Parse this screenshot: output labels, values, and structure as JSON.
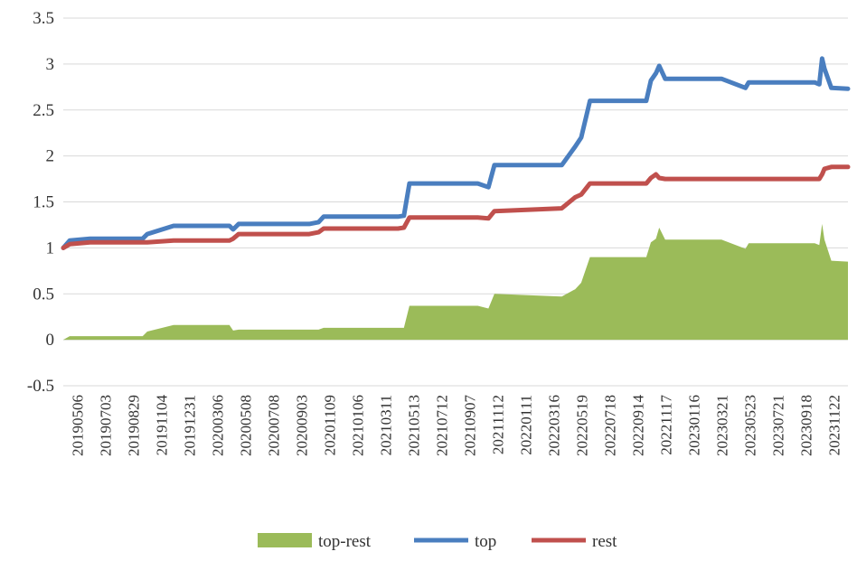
{
  "chart_data": {
    "type": "line",
    "title": "",
    "xlabel": "",
    "ylabel": "",
    "ylim": [
      -0.5,
      3.5
    ],
    "yticks": [
      "3.5",
      "3",
      "2.5",
      "2",
      "1.5",
      "1",
      "0.5",
      "0",
      "-0.5"
    ],
    "grid": "horizontal",
    "legend_position": "bottom",
    "x_tick_labels": [
      "20190506",
      "20190703",
      "20190829",
      "20191104",
      "20191231",
      "20200306",
      "20200508",
      "20200708",
      "20200903",
      "20201109",
      "20210106",
      "20210311",
      "20210513",
      "20210712",
      "20210907",
      "20211112",
      "20220111",
      "20220316",
      "20220519",
      "20220718",
      "20220914",
      "20221117",
      "20230116",
      "20230321",
      "20230523",
      "20230721",
      "20230918",
      "20231122"
    ],
    "x": [
      "20190506",
      "20190520",
      "20190703",
      "20191025",
      "20191104",
      "20191231",
      "20200430",
      "20200508",
      "20200520",
      "20201020",
      "20201109",
      "20201120",
      "20210430",
      "20210513",
      "20210525",
      "20211020",
      "20211112",
      "20211125",
      "20220420",
      "20220519",
      "20220601",
      "20220620",
      "20221020",
      "20221030",
      "20221110",
      "20221117",
      "20221130",
      "20230220",
      "20230401",
      "20230523",
      "20230530",
      "20230901",
      "20231020",
      "20231030",
      "20231105",
      "20231110",
      "20231125",
      "20231231"
    ],
    "series": [
      {
        "name": "top",
        "color": "#4a7ebf",
        "kind": "line",
        "values": [
          1.0,
          1.08,
          1.1,
          1.1,
          1.15,
          1.24,
          1.24,
          1.2,
          1.26,
          1.26,
          1.28,
          1.34,
          1.34,
          1.35,
          1.7,
          1.7,
          1.66,
          1.9,
          1.9,
          2.1,
          2.2,
          2.6,
          2.6,
          2.82,
          2.9,
          2.98,
          2.84,
          2.84,
          2.84,
          2.74,
          2.8,
          2.8,
          2.8,
          2.78,
          3.06,
          2.95,
          2.74,
          2.73
        ]
      },
      {
        "name": "rest",
        "color": "#c0504d",
        "kind": "line",
        "values": [
          1.0,
          1.04,
          1.06,
          1.06,
          1.06,
          1.08,
          1.08,
          1.1,
          1.15,
          1.15,
          1.17,
          1.21,
          1.21,
          1.22,
          1.33,
          1.33,
          1.32,
          1.4,
          1.43,
          1.55,
          1.58,
          1.7,
          1.7,
          1.76,
          1.8,
          1.76,
          1.75,
          1.75,
          1.75,
          1.75,
          1.75,
          1.75,
          1.75,
          1.75,
          1.8,
          1.86,
          1.88,
          1.88
        ]
      },
      {
        "name": "top-rest",
        "color": "#9bbb59",
        "kind": "area",
        "values": [
          0.0,
          0.04,
          0.04,
          0.04,
          0.09,
          0.16,
          0.16,
          0.1,
          0.11,
          0.11,
          0.11,
          0.13,
          0.13,
          0.13,
          0.37,
          0.37,
          0.34,
          0.5,
          0.47,
          0.55,
          0.62,
          0.9,
          0.9,
          1.06,
          1.1,
          1.22,
          1.09,
          1.09,
          1.09,
          0.99,
          1.05,
          1.05,
          1.05,
          1.03,
          1.26,
          1.09,
          0.86,
          0.85
        ]
      }
    ],
    "legend": [
      "top-rest",
      "top",
      "rest"
    ]
  }
}
